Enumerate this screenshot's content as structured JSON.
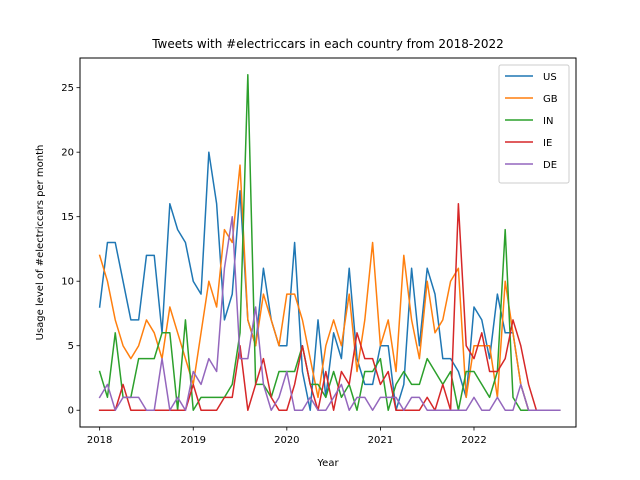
{
  "chart_data": {
    "type": "line",
    "title": "Tweets with #electriccars in each country from 2018-2022",
    "xlabel": "Year",
    "ylabel": "Usage level of #electriccars per month",
    "xlim": [
      2017.79,
      2023.09
    ],
    "ylim": [
      -1.3,
      27.3
    ],
    "x_ticks": [
      2018,
      2019,
      2020,
      2021,
      2022
    ],
    "y_ticks": [
      0,
      5,
      10,
      15,
      20,
      25
    ],
    "x_start": 2018,
    "x_step_months": 1,
    "grid": false,
    "legend_position": "top-right",
    "series": [
      {
        "name": "US",
        "color": "#1f77b4",
        "values": [
          8,
          13,
          13,
          10,
          7,
          7,
          12,
          12,
          6,
          16,
          14,
          13,
          10,
          9,
          20,
          16,
          7,
          9,
          17,
          7,
          5,
          11,
          7,
          5,
          5,
          13,
          3,
          0,
          7,
          1,
          6,
          4,
          11,
          4,
          2,
          2,
          5,
          5,
          0,
          2,
          11,
          5,
          11,
          9,
          4,
          4,
          3,
          1,
          8,
          7,
          4,
          9,
          6,
          6,
          2,
          0,
          0,
          0,
          0,
          0
        ]
      },
      {
        "name": "GB",
        "color": "#ff7f0e",
        "values": [
          12,
          10,
          7,
          5,
          4,
          5,
          7,
          6,
          4,
          8,
          6,
          4,
          2,
          6,
          10,
          8,
          14,
          13,
          19,
          7,
          5,
          9,
          7,
          5,
          9,
          9,
          7,
          4,
          1,
          5,
          7,
          5,
          9,
          3,
          7,
          13,
          5,
          7,
          3,
          12,
          7,
          4,
          10,
          6,
          7,
          10,
          11,
          1,
          5,
          5,
          5,
          1,
          10,
          6,
          2,
          0,
          0,
          0,
          0,
          0
        ]
      },
      {
        "name": "IN",
        "color": "#2ca02c",
        "values": [
          3,
          1,
          6,
          1,
          1,
          4,
          4,
          4,
          6,
          6,
          0,
          7,
          0,
          1,
          1,
          1,
          1,
          2,
          6,
          26,
          2,
          2,
          1,
          3,
          3,
          3,
          5,
          2,
          2,
          1,
          3,
          1,
          2,
          0,
          3,
          3,
          4,
          0,
          2,
          3,
          2,
          2,
          4,
          3,
          2,
          3,
          0,
          3,
          3,
          2,
          1,
          3,
          14,
          1,
          0,
          0,
          0,
          0,
          0,
          0
        ]
      },
      {
        "name": "IE",
        "color": "#d62728",
        "values": [
          0,
          0,
          0,
          2,
          0,
          0,
          0,
          0,
          0,
          0,
          0,
          0,
          2,
          0,
          0,
          0,
          1,
          1,
          5,
          0,
          2,
          4,
          1,
          0,
          0,
          2,
          5,
          2,
          0,
          3,
          0,
          3,
          2,
          6,
          4,
          4,
          2,
          3,
          0,
          0,
          0,
          0,
          1,
          0,
          2,
          0,
          16,
          5,
          4,
          6,
          3,
          3,
          4,
          7,
          5,
          2,
          0,
          0,
          0,
          0
        ]
      },
      {
        "name": "DE",
        "color": "#9467bd",
        "values": [
          1,
          2,
          0,
          1,
          1,
          1,
          0,
          0,
          4,
          0,
          1,
          0,
          3,
          2,
          4,
          3,
          11,
          15,
          4,
          4,
          8,
          2,
          0,
          1,
          3,
          0,
          0,
          1,
          0,
          0,
          1,
          2,
          0,
          1,
          1,
          0,
          1,
          1,
          1,
          0,
          1,
          1,
          0,
          0,
          0,
          0,
          0,
          0,
          1,
          0,
          0,
          1,
          0,
          0,
          2,
          0,
          0,
          0,
          0,
          0
        ]
      }
    ]
  }
}
